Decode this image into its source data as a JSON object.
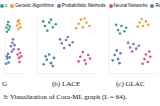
{
  "chart_data": [
    {
      "type": "scatter",
      "title": "G",
      "xlim": [
        0,
        10
      ],
      "ylim": [
        0,
        10
      ],
      "tick_labels": false,
      "series": [
        {
          "name": "c",
          "color": "#3aa17e",
          "values": [
            [
              1.2,
              7.8
            ],
            [
              1.8,
              8.3
            ],
            [
              2.4,
              7.5
            ],
            [
              1.5,
              7.1
            ],
            [
              2.9,
              8.0
            ],
            [
              2.1,
              8.8
            ]
          ]
        },
        {
          "name": "Genetic Algorithms",
          "color": "#e8a33d",
          "values": [
            [
              6.5,
              8.2
            ],
            [
              7.2,
              7.6
            ],
            [
              7.8,
              8.5
            ],
            [
              6.9,
              8.9
            ],
            [
              8.3,
              7.9
            ],
            [
              7.5,
              9.1
            ]
          ]
        },
        {
          "name": "Probabilistic Methods",
          "color": "#8e6bbf",
          "values": [
            [
              3.5,
              4.6
            ],
            [
              4.2,
              5.2
            ],
            [
              4.8,
              4.1
            ],
            [
              3.9,
              3.7
            ],
            [
              5.3,
              4.8
            ],
            [
              4.5,
              5.8
            ]
          ]
        },
        {
          "name": "Neural Networks",
          "color": "#d4556e",
          "values": [
            [
              6.8,
              3.2
            ],
            [
              7.5,
              2.6
            ],
            [
              8.1,
              3.5
            ],
            [
              7.2,
              4.1
            ],
            [
              8.6,
              2.9
            ],
            [
              7.8,
              1.9
            ]
          ]
        },
        {
          "name": "Rule Learning",
          "color": "#4a7fc1",
          "values": [
            [
              1.6,
              2.5
            ],
            [
              2.3,
              1.8
            ],
            [
              1.1,
              1.6
            ],
            [
              2.8,
              2.7
            ],
            [
              2.0,
              3.3
            ],
            [
              1.4,
              2.9
            ]
          ]
        }
      ]
    },
    {
      "type": "scatter",
      "title": "(b) LACE",
      "xlim": [
        0,
        10
      ],
      "ylim": [
        0,
        10
      ],
      "tick_labels": false,
      "series": [
        {
          "name": "c",
          "color": "#3aa17e",
          "values": [
            [
              1.5,
              8.1
            ],
            [
              2.2,
              8.7
            ],
            [
              2.8,
              7.9
            ],
            [
              1.9,
              7.3
            ],
            [
              3.3,
              8.4
            ],
            [
              2.5,
              9.2
            ],
            [
              1.2,
              8.9
            ]
          ]
        },
        {
          "name": "Genetic Algorithms",
          "color": "#e8a33d",
          "values": [
            [
              7.1,
              8.5
            ],
            [
              7.8,
              7.9
            ],
            [
              8.4,
              8.7
            ],
            [
              7.5,
              9.2
            ],
            [
              8.9,
              8.1
            ],
            [
              6.7,
              7.7
            ],
            [
              8.1,
              9.4
            ]
          ]
        },
        {
          "name": "Probabilistic Methods",
          "color": "#8e6bbf",
          "values": [
            [
              4.3,
              5.1
            ],
            [
              5.0,
              5.7
            ],
            [
              5.6,
              4.8
            ],
            [
              4.7,
              4.3
            ],
            [
              6.1,
              5.3
            ],
            [
              5.3,
              6.2
            ],
            [
              4.0,
              5.8
            ]
          ]
        },
        {
          "name": "Neural Networks",
          "color": "#d4556e",
          "values": [
            [
              7.4,
              2.8
            ],
            [
              8.1,
              2.2
            ],
            [
              8.7,
              3.1
            ],
            [
              7.8,
              3.6
            ],
            [
              9.0,
              2.5
            ],
            [
              8.3,
              1.6
            ],
            [
              7.1,
              2.0
            ]
          ]
        },
        {
          "name": "Rule Learning",
          "color": "#4a7fc1",
          "values": [
            [
              1.8,
              2.3
            ],
            [
              2.5,
              1.7
            ],
            [
              1.3,
              1.5
            ],
            [
              3.0,
              2.6
            ],
            [
              2.2,
              3.2
            ],
            [
              1.6,
              2.9
            ],
            [
              2.8,
              1.2
            ]
          ]
        }
      ]
    },
    {
      "type": "scatter",
      "title": "(c) GLAC",
      "xlim": [
        0,
        10
      ],
      "ylim": [
        0,
        10
      ],
      "tick_labels": false,
      "series": [
        {
          "name": "c",
          "color": "#3aa17e",
          "values": [
            [
              2.1,
              7.4
            ],
            [
              2.8,
              8.1
            ],
            [
              3.4,
              7.2
            ],
            [
              2.5,
              6.8
            ],
            [
              3.8,
              7.8
            ],
            [
              1.7,
              8.3
            ]
          ]
        },
        {
          "name": "Genetic Algorithms",
          "color": "#e8a33d",
          "values": [
            [
              6.6,
              8.7
            ],
            [
              7.3,
              8.1
            ],
            [
              7.9,
              8.9
            ],
            [
              7.0,
              9.3
            ],
            [
              8.4,
              8.3
            ],
            [
              6.2,
              8.0
            ]
          ]
        },
        {
          "name": "Probabilistic Methods",
          "color": "#8e6bbf",
          "values": [
            [
              4.6,
              4.4
            ],
            [
              5.3,
              5.0
            ],
            [
              5.9,
              4.2
            ],
            [
              5.0,
              3.7
            ],
            [
              6.4,
              4.7
            ],
            [
              4.2,
              5.2
            ]
          ]
        },
        {
          "name": "Neural Networks",
          "color": "#d4556e",
          "values": [
            [
              7.6,
              2.4
            ],
            [
              8.3,
              1.9
            ],
            [
              8.8,
              2.8
            ],
            [
              7.9,
              3.2
            ],
            [
              7.2,
              1.6
            ],
            [
              8.6,
              3.7
            ]
          ]
        },
        {
          "name": "Rule Learning",
          "color": "#4a7fc1",
          "values": [
            [
              1.4,
              3.1
            ],
            [
              2.1,
              2.4
            ],
            [
              1.0,
              2.2
            ],
            [
              2.6,
              3.4
            ],
            [
              1.8,
              3.9
            ],
            [
              2.4,
              1.7
            ]
          ]
        }
      ]
    }
  ],
  "caption": "3: Visualization of Cora-ML graph (L = 64)."
}
